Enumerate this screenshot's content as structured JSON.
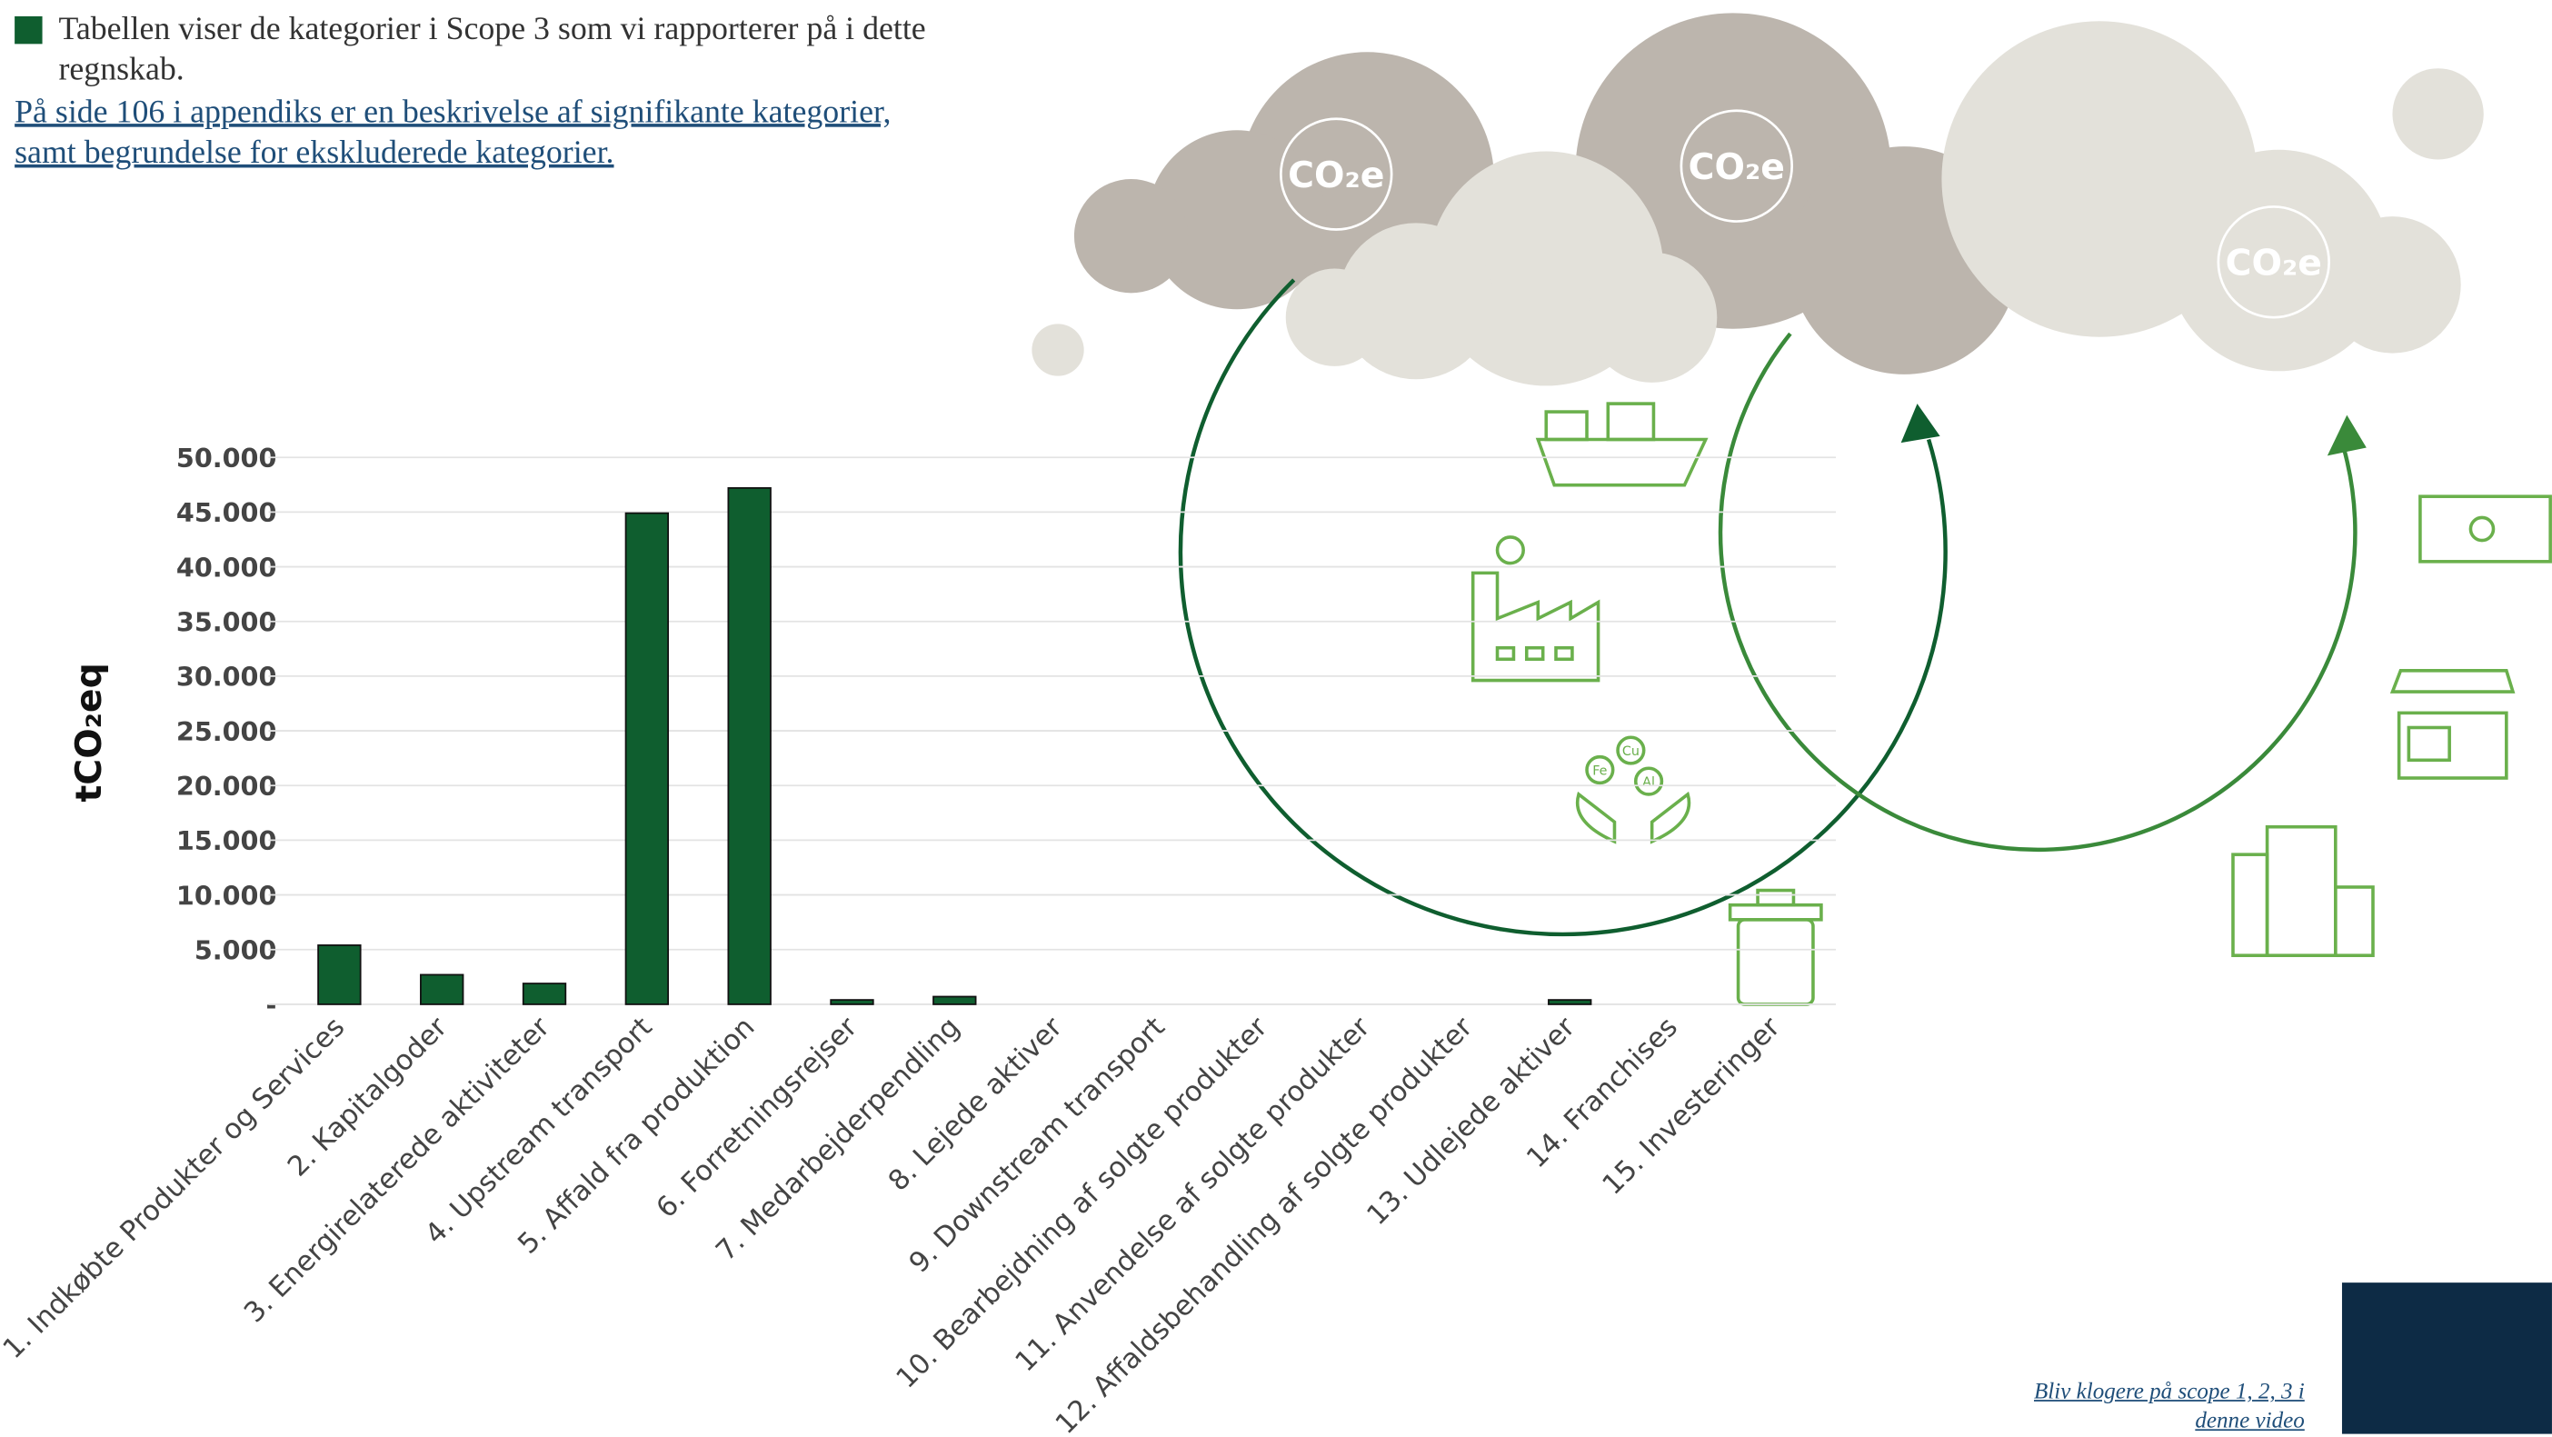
{
  "chart_data": {
    "type": "bar",
    "categories": [
      "1. Indkøbte Produkter og Services",
      "2. Kapitalgoder",
      "3. Energirelaterede aktiviteter",
      "4. Upstream transport",
      "5. Affald fra produktion",
      "6. Forretningsrejser",
      "7. Medarbejderpendling",
      "8. Lejede aktiver",
      "9. Downstream transport",
      "10. Bearbejdning af solgte produkter",
      "11. Anvendelse af solgte produkter",
      "12. Affaldsbehandling af solgte produkter",
      "13. Udlejede aktiver",
      "14. Franchises",
      "15. Investeringer"
    ],
    "series": [
      {
        "name": "Tabellen viser de kategorier i Scope 3 som vi rapporterer på i dette regnskab.",
        "color": "#0f5e2f",
        "values": [
          5400,
          2700,
          1900,
          44900,
          47200,
          400,
          700,
          0,
          0,
          0,
          0,
          0,
          400,
          0,
          0
        ]
      }
    ],
    "y_label": "tCO₂eq",
    "ylim": [
      0,
      50000
    ],
    "yticks": [
      {
        "value": 0,
        "label": "-"
      },
      {
        "value": 5000,
        "label": "5.000"
      },
      {
        "value": 10000,
        "label": "10.000"
      },
      {
        "value": 15000,
        "label": "15.000"
      },
      {
        "value": 20000,
        "label": "20.000"
      },
      {
        "value": 25000,
        "label": "25.000"
      },
      {
        "value": 30000,
        "label": "30.000"
      },
      {
        "value": 35000,
        "label": "35.000"
      },
      {
        "value": 40000,
        "label": "40.000"
      },
      {
        "value": 45000,
        "label": "45.000"
      },
      {
        "value": 50000,
        "label": "50.000"
      }
    ],
    "grid": true
  },
  "link_text": "På side 106 i appendiks er en beskrivelse af signifikante kategorier, samt begrundelse for ekskluderede kategorier.",
  "video_link": "Bliv klogere på scope 1, 2, 3 i denne video",
  "illustration": {
    "cloud_labels": [
      "CO₂e",
      "CO₂e",
      "CO₂e"
    ],
    "elements": [
      "Fe",
      "Cu",
      "Al"
    ]
  }
}
